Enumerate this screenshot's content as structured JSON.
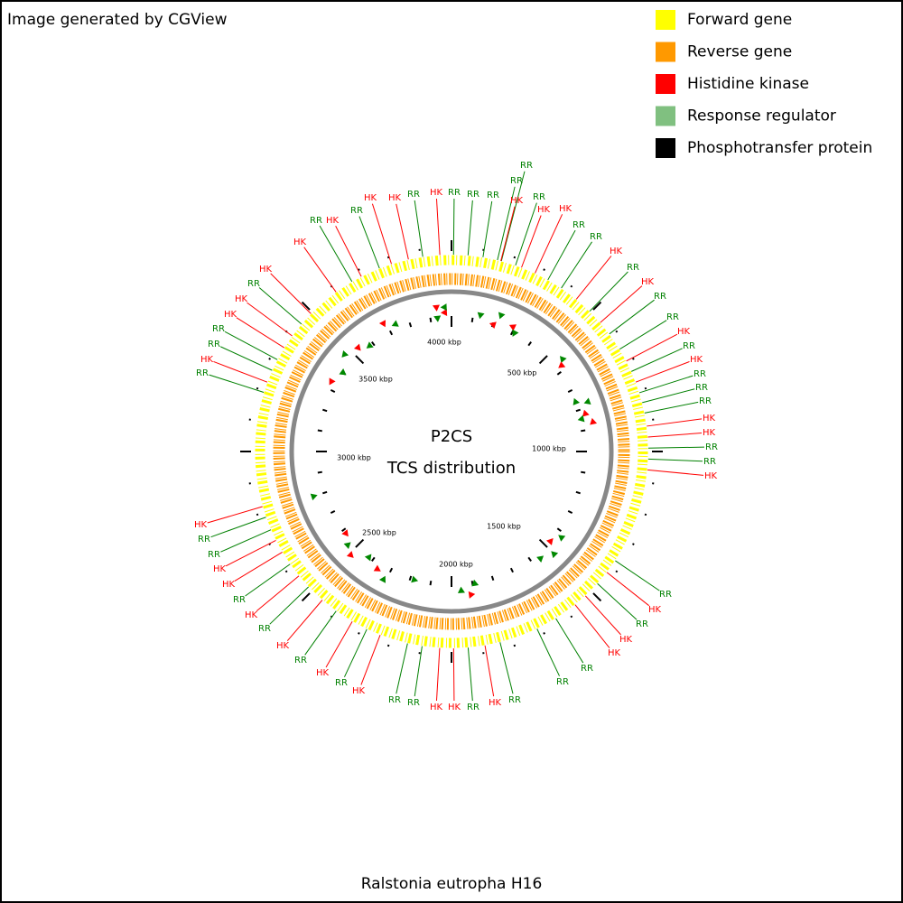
{
  "header": {
    "credit": "Image generated by CGView"
  },
  "legend": [
    {
      "label": "Forward gene",
      "color": "#ffff00"
    },
    {
      "label": "Reverse gene",
      "color": "#ff9900"
    },
    {
      "label": "Histidine kinase",
      "color": "#ff0000"
    },
    {
      "label": "Response regulator",
      "color": "#80c080"
    },
    {
      "label": "Phosphotransfer protein",
      "color": "#000000"
    }
  ],
  "center": {
    "title": "P2CS",
    "subtitle": "TCS distribution"
  },
  "scale_labels": [
    "500 kbp",
    "1000 kbp",
    "1500 kbp",
    "2000 kbp",
    "2500 kbp",
    "3000 kbp",
    "3500 kbp",
    "4000 kbp"
  ],
  "labels": [
    {
      "text": "RR",
      "color": "#008000"
    },
    {
      "text": "HK",
      "color": "#ff0000"
    },
    {
      "text": "RR",
      "color": "#008000"
    },
    {
      "text": "HK",
      "color": "#ff0000"
    },
    {
      "text": "HK",
      "color": "#ff0000"
    },
    {
      "text": "RR",
      "color": "#008000"
    },
    {
      "text": "HK",
      "color": "#ff0000"
    },
    {
      "text": "RR",
      "color": "#008000"
    },
    {
      "text": "RR",
      "color": "#008000"
    },
    {
      "text": "RR",
      "color": "#008000"
    },
    {
      "text": "RR",
      "color": "#008000"
    },
    {
      "text": "RR",
      "color": "#008000"
    },
    {
      "text": "HK",
      "color": "#ff0000"
    },
    {
      "text": "RR",
      "color": "#008000"
    },
    {
      "text": "HK",
      "color": "#ff0000"
    },
    {
      "text": "HK",
      "color": "#ff0000"
    },
    {
      "text": "RR",
      "color": "#008000"
    },
    {
      "text": "RR",
      "color": "#008000"
    },
    {
      "text": "HK",
      "color": "#ff0000"
    },
    {
      "text": "RR",
      "color": "#008000"
    },
    {
      "text": "HK",
      "color": "#ff0000"
    },
    {
      "text": "RR",
      "color": "#008000"
    },
    {
      "text": "RR",
      "color": "#008000"
    },
    {
      "text": "HK",
      "color": "#ff0000"
    },
    {
      "text": "RR",
      "color": "#008000"
    },
    {
      "text": "HK",
      "color": "#ff0000"
    },
    {
      "text": "RR",
      "color": "#008000"
    },
    {
      "text": "RR",
      "color": "#008000"
    },
    {
      "text": "RR",
      "color": "#008000"
    },
    {
      "text": "HK",
      "color": "#ff0000"
    },
    {
      "text": "HK",
      "color": "#ff0000"
    },
    {
      "text": "RR",
      "color": "#008000"
    },
    {
      "text": "RR",
      "color": "#008000"
    },
    {
      "text": "HK",
      "color": "#ff0000"
    },
    {
      "text": "RR",
      "color": "#008000"
    },
    {
      "text": "HK",
      "color": "#ff0000"
    },
    {
      "text": "RR",
      "color": "#008000"
    },
    {
      "text": "HK",
      "color": "#ff0000"
    },
    {
      "text": "HK",
      "color": "#ff0000"
    },
    {
      "text": "RR",
      "color": "#008000"
    },
    {
      "text": "RR",
      "color": "#008000"
    },
    {
      "text": "RR",
      "color": "#008000"
    },
    {
      "text": "HK",
      "color": "#ff0000"
    },
    {
      "text": "RR",
      "color": "#008000"
    },
    {
      "text": "HK",
      "color": "#ff0000"
    },
    {
      "text": "HK",
      "color": "#ff0000"
    },
    {
      "text": "RR",
      "color": "#008000"
    },
    {
      "text": "RR",
      "color": "#008000"
    },
    {
      "text": "HK",
      "color": "#ff0000"
    },
    {
      "text": "RR",
      "color": "#008000"
    },
    {
      "text": "HK",
      "color": "#ff0000"
    },
    {
      "text": "RR",
      "color": "#008000"
    },
    {
      "text": "HK",
      "color": "#ff0000"
    },
    {
      "text": "RR",
      "color": "#008000"
    },
    {
      "text": "HK",
      "color": "#ff0000"
    },
    {
      "text": "RR",
      "color": "#008000"
    },
    {
      "text": "HK",
      "color": "#ff0000"
    },
    {
      "text": "HK",
      "color": "#ff0000"
    },
    {
      "text": "RR",
      "color": "#008000"
    },
    {
      "text": "RR",
      "color": "#008000"
    },
    {
      "text": "HK",
      "color": "#ff0000"
    },
    {
      "text": "RR",
      "color": "#008000"
    },
    {
      "text": "HK",
      "color": "#ff0000"
    },
    {
      "text": "RR",
      "color": "#008000"
    },
    {
      "text": "RR",
      "color": "#008000"
    },
    {
      "text": "HK",
      "color": "#ff0000"
    },
    {
      "text": "HK",
      "color": "#ff0000"
    },
    {
      "text": "RR",
      "color": "#008000"
    },
    {
      "text": "HK",
      "color": "#ff0000"
    },
    {
      "text": "HK",
      "color": "#ff0000"
    }
  ],
  "footer": "Ralstonia eutropha H16"
}
